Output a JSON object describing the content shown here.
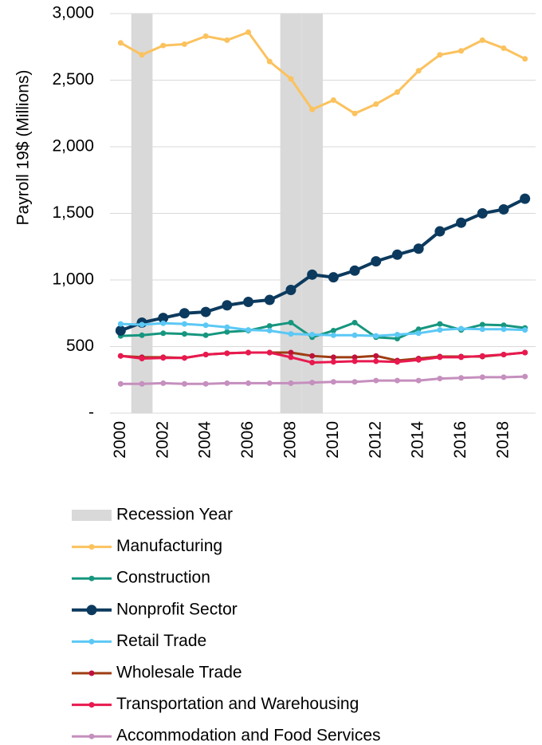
{
  "chart_data": {
    "type": "line",
    "y_label": "Payroll 19$ (Millions)",
    "x": [
      2000,
      2001,
      2002,
      2003,
      2004,
      2005,
      2006,
      2007,
      2008,
      2009,
      2010,
      2011,
      2012,
      2013,
      2014,
      2015,
      2016,
      2017,
      2018,
      2019
    ],
    "xlim": [
      1999.5,
      2019.5
    ],
    "xticks": [
      2000,
      2002,
      2004,
      2006,
      2008,
      2010,
      2012,
      2014,
      2016,
      2018
    ],
    "ylim": [
      0,
      3000
    ],
    "yticks": [
      {
        "value": 0,
        "label": "-"
      },
      500,
      {
        "value": 1000,
        "label": "1,000"
      },
      {
        "value": 1500,
        "label": "1,500"
      },
      {
        "value": 2000,
        "label": "2,000"
      },
      {
        "value": 2500,
        "label": "2,500"
      },
      {
        "value": 3000,
        "label": "3,000"
      }
    ],
    "grid": true,
    "legend": "bottom",
    "series": [
      {
        "name": "Recession Year",
        "type": "bar",
        "color": "#d9d9d9",
        "values": [
          null,
          3000,
          null,
          null,
          null,
          null,
          null,
          null,
          3000,
          3000,
          null,
          null,
          null,
          null,
          null,
          null,
          null,
          null,
          null,
          null
        ]
      },
      {
        "name": "Manufacturing",
        "color": "#fbc25e",
        "values": [
          2780,
          2690,
          2760,
          2770,
          2830,
          2800,
          2860,
          2640,
          2510,
          2280,
          2350,
          2250,
          2320,
          2410,
          2570,
          2690,
          2720,
          2800,
          2740,
          2660
        ]
      },
      {
        "name": "Construction",
        "color": "#16967f",
        "values": [
          580,
          585,
          600,
          595,
          585,
          610,
          620,
          655,
          680,
          570,
          620,
          680,
          570,
          560,
          630,
          670,
          625,
          665,
          660,
          640
        ]
      },
      {
        "name": "Nonprofit Sector",
        "color": "#0c3a5e",
        "values": [
          620,
          680,
          715,
          750,
          760,
          810,
          835,
          850,
          925,
          1040,
          1020,
          1070,
          1140,
          1190,
          1235,
          1365,
          1430,
          1500,
          1530,
          1610
        ]
      },
      {
        "name": "Retail Trade",
        "color": "#5bc8f5",
        "values": [
          670,
          665,
          675,
          670,
          660,
          645,
          625,
          620,
          595,
          590,
          585,
          585,
          580,
          590,
          600,
          625,
          635,
          630,
          630,
          625
        ]
      },
      {
        "name": "Wholesale Trade",
        "color": "#9e3d12",
        "values": [
          430,
          420,
          420,
          415,
          440,
          450,
          455,
          455,
          455,
          430,
          420,
          420,
          430,
          395,
          410,
          425,
          425,
          425,
          440,
          455
        ]
      },
      {
        "name": "Transportation and Warehousing",
        "color": "#e8194f",
        "values": [
          430,
          410,
          415,
          415,
          440,
          450,
          455,
          455,
          420,
          380,
          385,
          390,
          390,
          385,
          400,
          420,
          420,
          430,
          440,
          455
        ]
      },
      {
        "name": "Accommodation and Food Services",
        "color": "#c58fbe",
        "values": [
          220,
          220,
          225,
          220,
          220,
          225,
          225,
          225,
          225,
          230,
          235,
          235,
          245,
          245,
          245,
          260,
          265,
          270,
          270,
          275
        ]
      }
    ]
  }
}
